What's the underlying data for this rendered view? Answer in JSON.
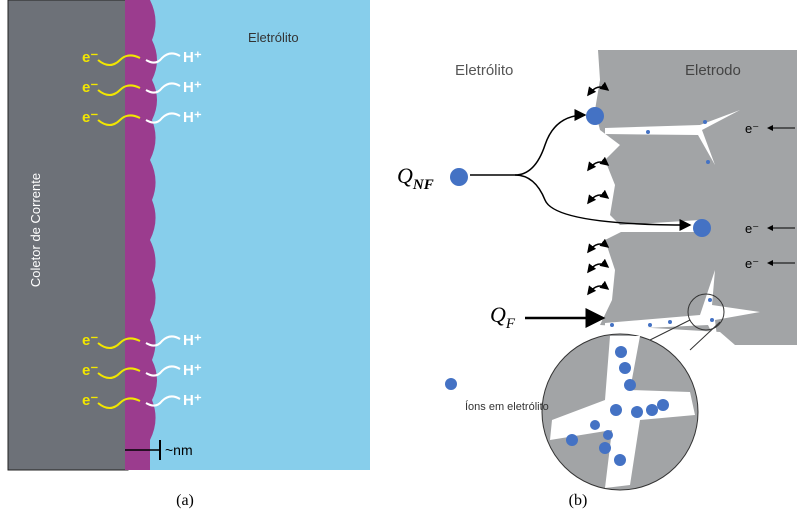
{
  "panel_a": {
    "electrolyte": "Eletrólito",
    "collector": "Coletor de Corrente",
    "electrons": [
      "e⁻",
      "e⁻",
      "e⁻",
      "e⁻",
      "e⁻",
      "e⁻"
    ],
    "protons": [
      "H⁺",
      "H⁺",
      "H⁺",
      "H⁺",
      "H⁺",
      "H⁺"
    ],
    "scale": "~nm",
    "caption": "(a)"
  },
  "panel_b": {
    "electrolyte": "Eletrólito",
    "electrode": "Eletrodo",
    "q_nf": {
      "symbol": "Q",
      "subscript": "NF"
    },
    "q_f": {
      "symbol": "Q",
      "subscript": "F"
    },
    "electrons": [
      "e⁻",
      "e⁻",
      "e⁻"
    ],
    "legend": "Íons em eletrólito",
    "caption": "(b)"
  }
}
